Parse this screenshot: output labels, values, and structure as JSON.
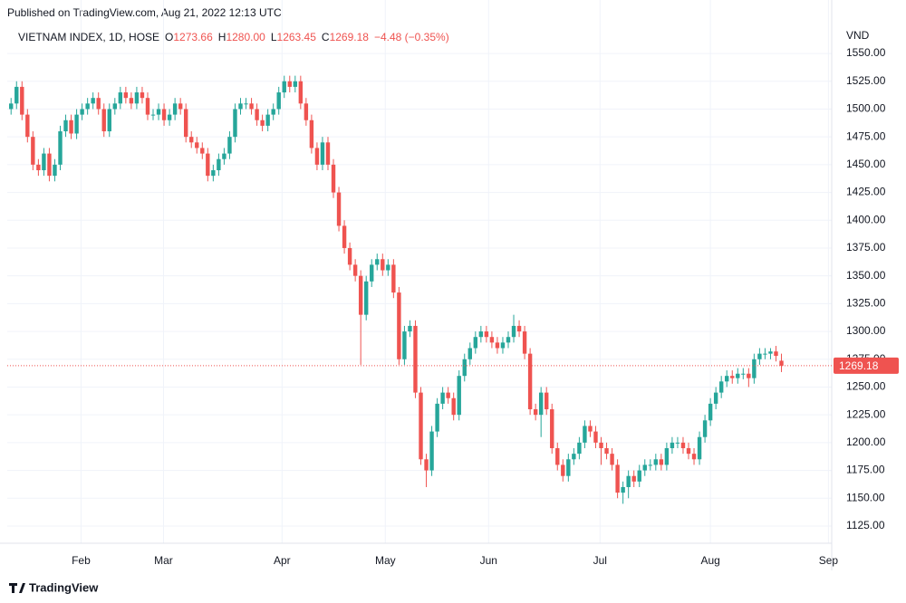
{
  "header": "Published on TradingView.com, Aug 21, 2022 12:13 UTC",
  "brand": "TradingView",
  "chart_data": {
    "type": "candlestick",
    "title": "VIETNAM INDEX, 1D, HOSE",
    "ohlc_legend": [
      {
        "label": "O",
        "value": "1273.66"
      },
      {
        "label": "H",
        "value": "1280.00"
      },
      {
        "label": "L",
        "value": "1263.45"
      },
      {
        "label": "C",
        "value": "1269.18"
      }
    ],
    "change": "−4.48 (−0.35%)",
    "y_unit": "VND",
    "up_color": "#26a69a",
    "down_color": "#ef5350",
    "grid": true,
    "xlim": [
      -0.7,
      150.2
    ],
    "xticks": [
      {
        "value": 12.8,
        "label": "Feb"
      },
      {
        "value": 27.9,
        "label": "Mar"
      },
      {
        "value": 49.6,
        "label": "Apr"
      },
      {
        "value": 68.5,
        "label": "May"
      },
      {
        "value": 87.4,
        "label": "Jun"
      },
      {
        "value": 107.8,
        "label": "Jul"
      },
      {
        "value": 128.0,
        "label": "Aug"
      },
      {
        "value": 149.6,
        "label": "Sep"
      }
    ],
    "ylim": [
      1109.5,
      1575.3
    ],
    "yticks": [
      {
        "value": 1125,
        "label": "1125.00"
      },
      {
        "value": 1150,
        "label": "1150.00"
      },
      {
        "value": 1175,
        "label": "1175.00"
      },
      {
        "value": 1200,
        "label": "1200.00"
      },
      {
        "value": 1225,
        "label": "1225.00"
      },
      {
        "value": 1250,
        "label": "1250.00"
      },
      {
        "value": 1275,
        "label": "1275.00"
      },
      {
        "value": 1300,
        "label": "1300.00"
      },
      {
        "value": 1325,
        "label": "1325.00"
      },
      {
        "value": 1350,
        "label": "1350.00"
      },
      {
        "value": 1375,
        "label": "1375.00"
      },
      {
        "value": 1400,
        "label": "1400.00"
      },
      {
        "value": 1425,
        "label": "1425.00"
      },
      {
        "value": 1450,
        "label": "1450.00"
      },
      {
        "value": 1475,
        "label": "1475.00"
      },
      {
        "value": 1500,
        "label": "1500.00"
      },
      {
        "value": 1525,
        "label": "1525.00"
      },
      {
        "value": 1550,
        "label": "1550.00"
      }
    ],
    "open": [
      1500,
      1505,
      1520,
      1495,
      1475,
      1450,
      1445,
      1460,
      1440,
      1450,
      1480,
      1490,
      1478,
      1495,
      1500,
      1505,
      1510,
      1500,
      1480,
      1500,
      1505,
      1515,
      1510,
      1505,
      1515,
      1510,
      1495,
      1495,
      1500,
      1490,
      1495,
      1505,
      1500,
      1475,
      1470,
      1465,
      1460,
      1440,
      1445,
      1455,
      1460,
      1475,
      1500,
      1505,
      1505,
      1500,
      1490,
      1485,
      1495,
      1500,
      1515,
      1525,
      1520,
      1525,
      1505,
      1490,
      1465,
      1450,
      1470,
      1450,
      1425,
      1395,
      1375,
      1360,
      1350,
      1315,
      1345,
      1360,
      1365,
      1355,
      1360,
      1335,
      1275,
      1300,
      1305,
      1245,
      1185,
      1175,
      1210,
      1235,
      1245,
      1240,
      1225,
      1260,
      1275,
      1285,
      1295,
      1300,
      1295,
      1290,
      1285,
      1290,
      1295,
      1305,
      1300,
      1280,
      1230,
      1225,
      1245,
      1230,
      1195,
      1180,
      1170,
      1185,
      1190,
      1200,
      1215,
      1210,
      1200,
      1195,
      1190,
      1180,
      1155,
      1160,
      1170,
      1165,
      1175,
      1180,
      1180,
      1185,
      1180,
      1195,
      1200,
      1200,
      1195,
      1190,
      1185,
      1205,
      1220,
      1235,
      1245,
      1255,
      1260,
      1258,
      1262,
      1262,
      1258,
      1275,
      1280,
      1280,
      1282,
      1273.66
    ],
    "high": [
      1510,
      1525,
      1525,
      1500,
      1480,
      1455,
      1465,
      1465,
      1455,
      1485,
      1495,
      1495,
      1500,
      1505,
      1510,
      1515,
      1515,
      1505,
      1505,
      1510,
      1520,
      1520,
      1515,
      1520,
      1520,
      1515,
      1500,
      1505,
      1505,
      1500,
      1510,
      1510,
      1505,
      1480,
      1475,
      1470,
      1465,
      1450,
      1460,
      1465,
      1480,
      1505,
      1510,
      1510,
      1510,
      1505,
      1495,
      1500,
      1505,
      1520,
      1530,
      1530,
      1530,
      1530,
      1510,
      1495,
      1470,
      1475,
      1475,
      1455,
      1430,
      1400,
      1380,
      1365,
      1355,
      1350,
      1365,
      1370,
      1370,
      1365,
      1365,
      1340,
      1305,
      1310,
      1310,
      1250,
      1190,
      1215,
      1240,
      1250,
      1250,
      1245,
      1265,
      1280,
      1290,
      1300,
      1305,
      1305,
      1300,
      1295,
      1295,
      1300,
      1315,
      1310,
      1305,
      1285,
      1235,
      1250,
      1250,
      1235,
      1200,
      1185,
      1190,
      1195,
      1205,
      1220,
      1220,
      1215,
      1205,
      1200,
      1195,
      1185,
      1165,
      1175,
      1175,
      1180,
      1185,
      1185,
      1190,
      1190,
      1200,
      1205,
      1205,
      1205,
      1200,
      1195,
      1210,
      1225,
      1240,
      1250,
      1260,
      1265,
      1265,
      1267,
      1267,
      1267,
      1280,
      1285,
      1285,
      1285,
      1287,
      1280
    ],
    "low": [
      1495,
      1500,
      1490,
      1470,
      1445,
      1440,
      1440,
      1435,
      1435,
      1445,
      1475,
      1473,
      1473,
      1490,
      1495,
      1500,
      1495,
      1475,
      1475,
      1495,
      1500,
      1505,
      1500,
      1500,
      1505,
      1490,
      1490,
      1490,
      1485,
      1485,
      1490,
      1495,
      1470,
      1465,
      1460,
      1455,
      1435,
      1435,
      1440,
      1450,
      1455,
      1470,
      1495,
      1500,
      1495,
      1485,
      1480,
      1480,
      1490,
      1495,
      1510,
      1515,
      1515,
      1500,
      1485,
      1460,
      1445,
      1445,
      1445,
      1420,
      1390,
      1370,
      1355,
      1345,
      1270,
      1310,
      1340,
      1355,
      1350,
      1350,
      1330,
      1270,
      1270,
      1295,
      1240,
      1180,
      1160,
      1170,
      1205,
      1230,
      1235,
      1220,
      1220,
      1255,
      1270,
      1280,
      1290,
      1290,
      1285,
      1280,
      1280,
      1285,
      1290,
      1295,
      1275,
      1225,
      1220,
      1205,
      1225,
      1190,
      1175,
      1165,
      1165,
      1180,
      1185,
      1195,
      1205,
      1195,
      1180,
      1185,
      1175,
      1150,
      1145,
      1150,
      1160,
      1160,
      1170,
      1175,
      1175,
      1175,
      1175,
      1190,
      1195,
      1190,
      1185,
      1180,
      1180,
      1200,
      1215,
      1230,
      1240,
      1250,
      1253,
      1253,
      1257,
      1250,
      1253,
      1270,
      1275,
      1275,
      1273,
      1263.45
    ],
    "close": [
      1505,
      1520,
      1495,
      1475,
      1450,
      1445,
      1460,
      1440,
      1450,
      1480,
      1490,
      1478,
      1495,
      1500,
      1505,
      1510,
      1500,
      1480,
      1500,
      1505,
      1515,
      1510,
      1505,
      1515,
      1510,
      1495,
      1495,
      1500,
      1490,
      1495,
      1505,
      1500,
      1475,
      1470,
      1465,
      1460,
      1440,
      1445,
      1455,
      1460,
      1475,
      1500,
      1505,
      1505,
      1500,
      1490,
      1485,
      1495,
      1500,
      1515,
      1525,
      1520,
      1525,
      1505,
      1490,
      1465,
      1450,
      1470,
      1450,
      1425,
      1395,
      1375,
      1360,
      1350,
      1315,
      1345,
      1360,
      1365,
      1355,
      1360,
      1335,
      1275,
      1300,
      1305,
      1245,
      1185,
      1175,
      1210,
      1235,
      1245,
      1240,
      1225,
      1260,
      1275,
      1285,
      1295,
      1300,
      1295,
      1290,
      1285,
      1290,
      1295,
      1305,
      1300,
      1280,
      1230,
      1225,
      1245,
      1230,
      1195,
      1180,
      1170,
      1185,
      1190,
      1200,
      1215,
      1210,
      1200,
      1195,
      1190,
      1180,
      1155,
      1160,
      1170,
      1165,
      1175,
      1180,
      1180,
      1185,
      1180,
      1195,
      1200,
      1200,
      1195,
      1190,
      1185,
      1205,
      1220,
      1235,
      1245,
      1255,
      1260,
      1258,
      1262,
      1262,
      1258,
      1275,
      1280,
      1280,
      1282,
      1278,
      1269.18
    ]
  }
}
